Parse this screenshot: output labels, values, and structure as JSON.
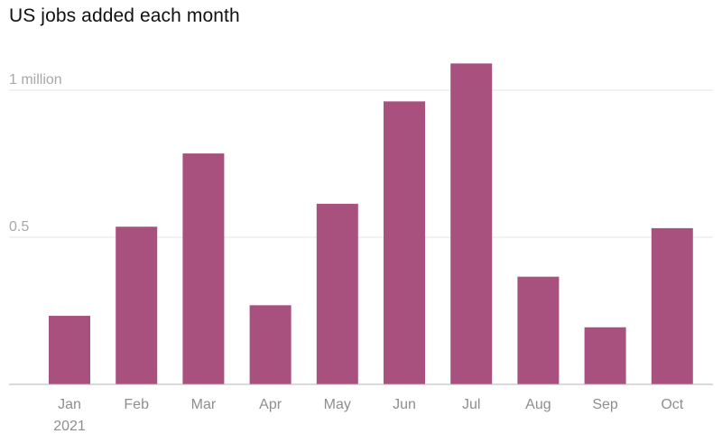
{
  "chart_data": {
    "type": "bar",
    "title": "US jobs added each month",
    "xlabel": "",
    "ylabel": "",
    "categories": [
      "Jan",
      "Feb",
      "Mar",
      "Apr",
      "May",
      "Jun",
      "Jul",
      "Aug",
      "Sep",
      "Oct"
    ],
    "category_sublabels": [
      "2021",
      "",
      "",
      "",
      "",
      "",
      "",
      "",
      "",
      ""
    ],
    "values": [
      0.233,
      0.536,
      0.785,
      0.269,
      0.614,
      0.962,
      1.091,
      0.366,
      0.194,
      0.531
    ],
    "ylim": [
      0,
      1.1
    ],
    "yticks": [
      {
        "value": 1.0,
        "label": "1 million"
      },
      {
        "value": 0.5,
        "label": "0.5"
      }
    ],
    "grid": true,
    "color": "#a8517f"
  }
}
